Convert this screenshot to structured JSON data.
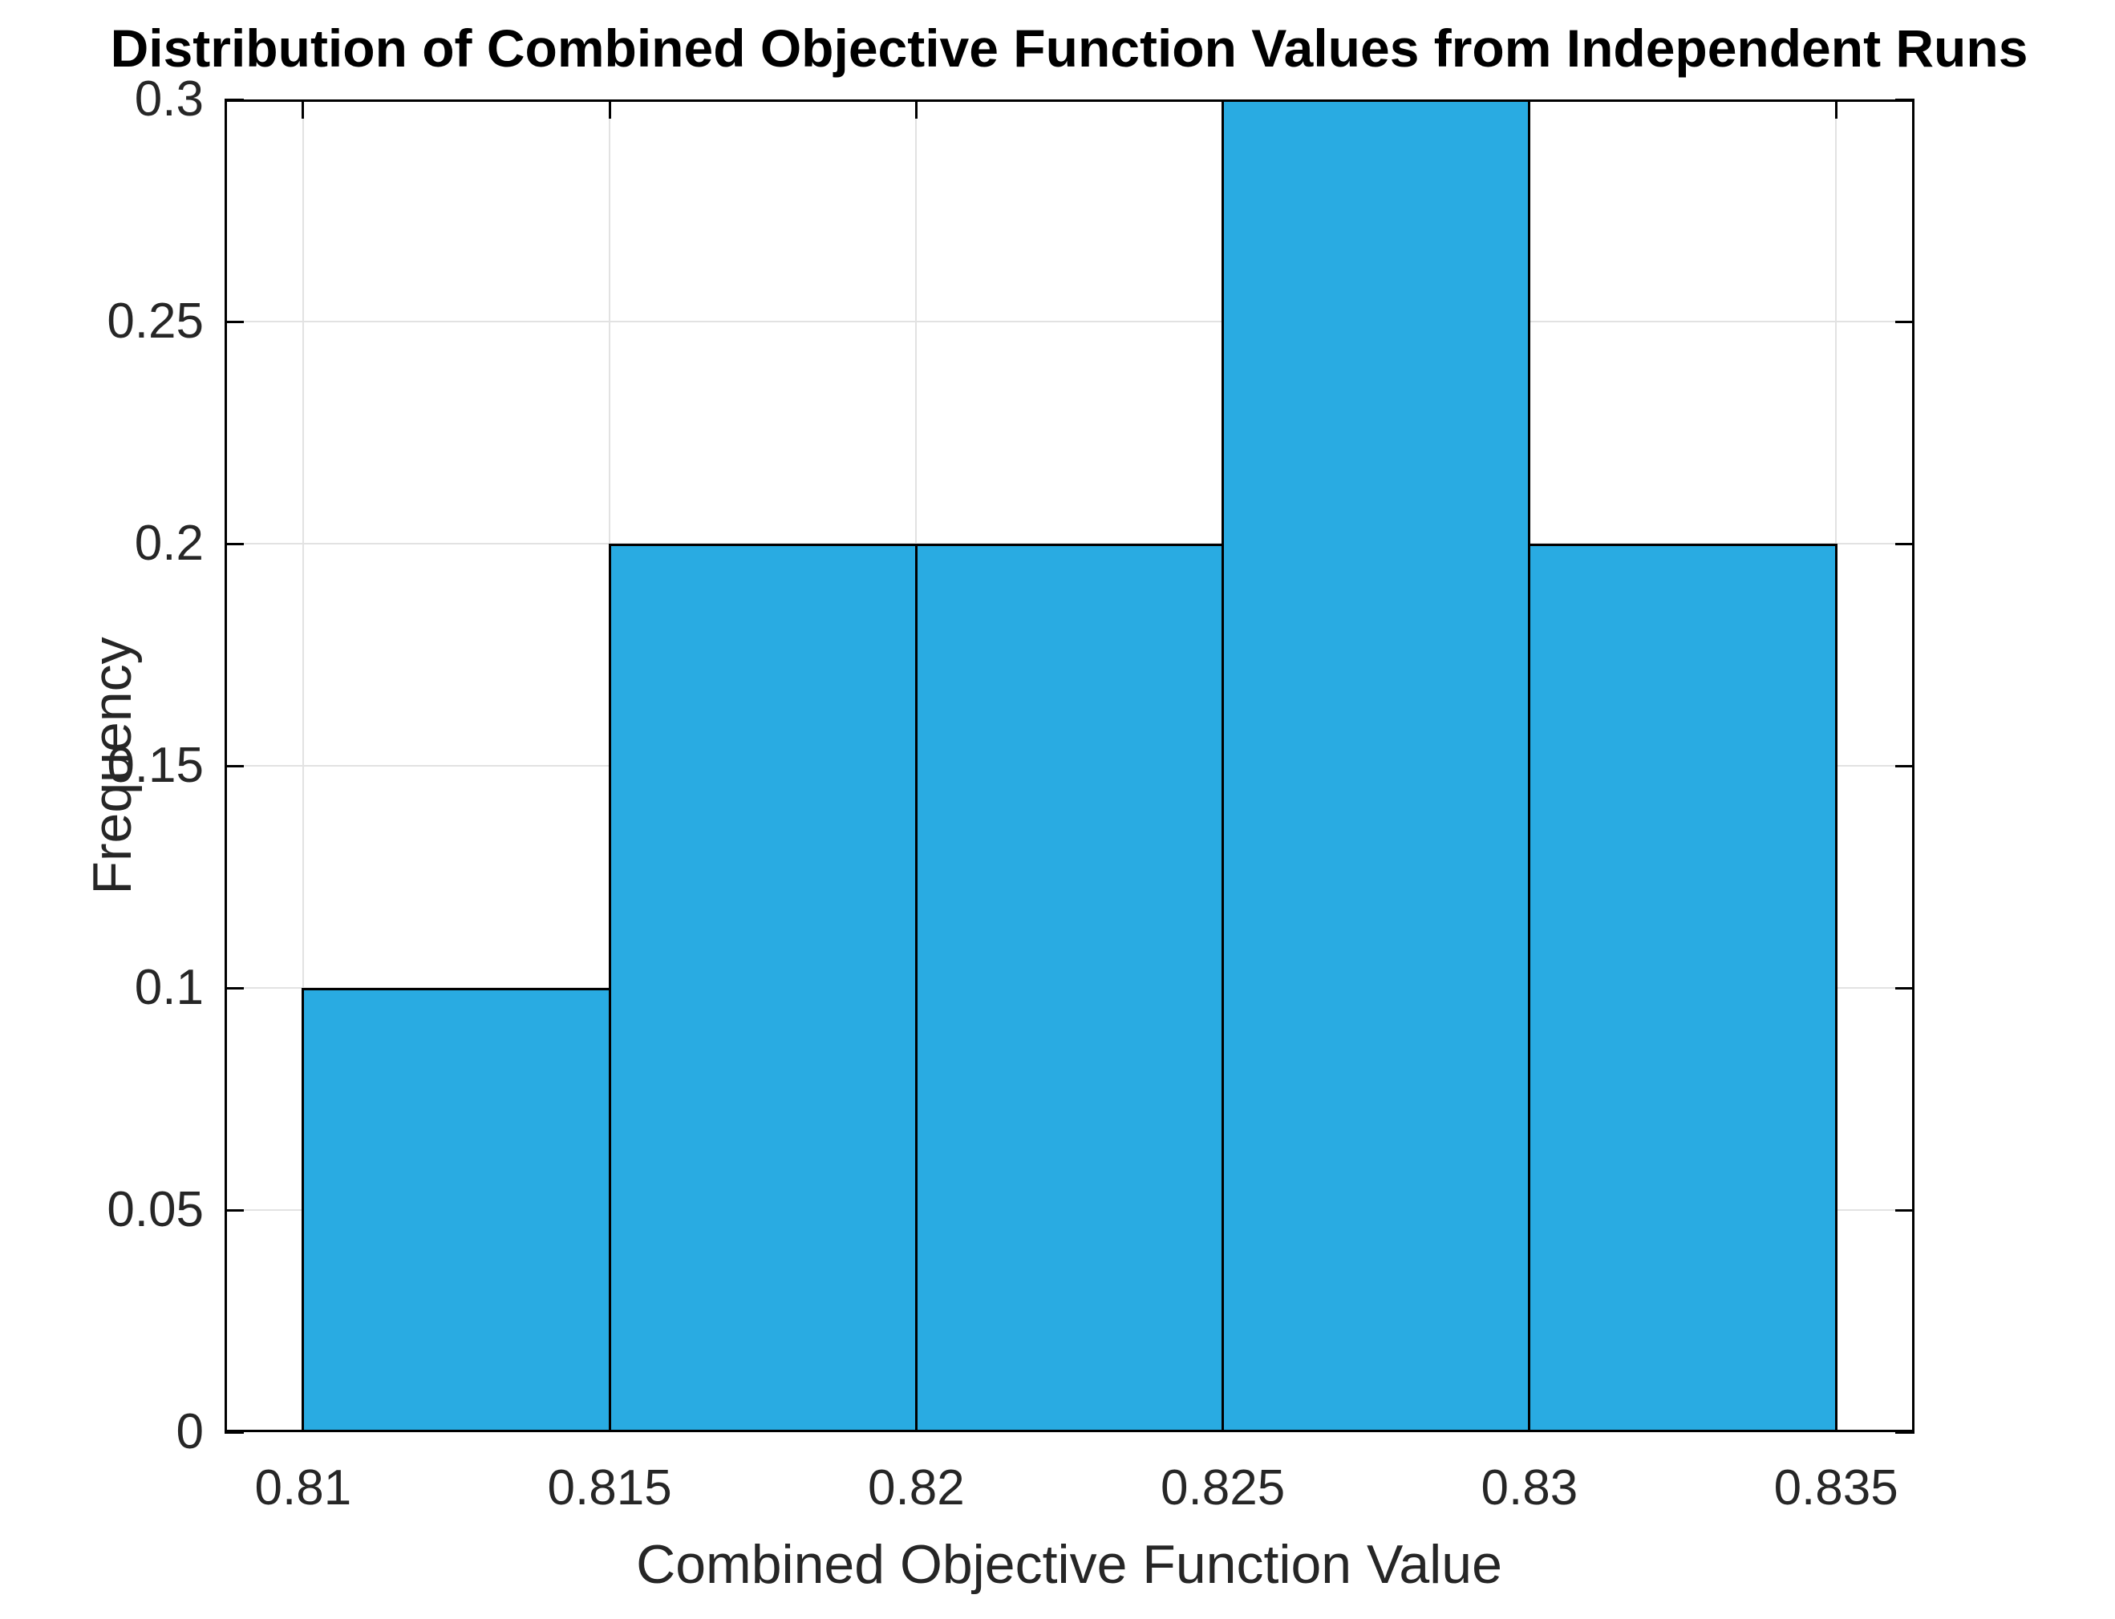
{
  "chart_data": {
    "type": "bar",
    "subtype": "histogram",
    "title": "Distribution of Combined Objective Function Values from Independent Runs",
    "xlabel": "Combined Objective Function Value",
    "ylabel": "Frequency",
    "bin_edges": [
      0.81,
      0.815,
      0.82,
      0.825,
      0.83,
      0.835
    ],
    "values": [
      0.1,
      0.2,
      0.2,
      0.3,
      0.2
    ],
    "x_ticks": [
      0.81,
      0.815,
      0.82,
      0.825,
      0.83,
      0.835
    ],
    "x_tick_labels": [
      "0.81",
      "0.815",
      "0.82",
      "0.825",
      "0.83",
      "0.835"
    ],
    "y_ticks": [
      0,
      0.05,
      0.1,
      0.15,
      0.2,
      0.25,
      0.3
    ],
    "y_tick_labels": [
      "0",
      "0.05",
      "0.1",
      "0.15",
      "0.2",
      "0.25",
      "0.3"
    ],
    "xlim": [
      0.80872,
      0.83628
    ],
    "ylim": [
      0,
      0.3
    ],
    "grid": true,
    "legend": null,
    "bar_color": "#29ABE2",
    "bar_edge_color": "#000000",
    "grid_color": "#E2E2E2",
    "axis_color": "#000000",
    "text_color": "#262626",
    "background_color": "#FFFFFF"
  }
}
